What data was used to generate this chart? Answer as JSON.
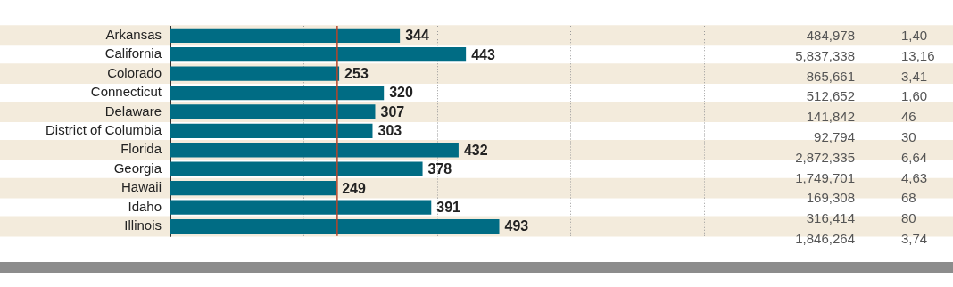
{
  "chart_data": [
    {
      "type": "bar",
      "orientation": "horizontal",
      "categories": [
        "Arkansas",
        "California",
        "Colorado",
        "Connecticut",
        "Delaware",
        "District of Columbia",
        "Florida",
        "Georgia",
        "Hawaii",
        "Idaho",
        "Illinois"
      ],
      "values": [
        344,
        443,
        253,
        320,
        307,
        303,
        432,
        378,
        249,
        391,
        493
      ],
      "color": "#006c84",
      "data_labels": true,
      "xlim": [
        0,
        800
      ],
      "xticks": [
        {
          "value": 200,
          "label": null
        },
        {
          "value": 400,
          "label": null
        },
        {
          "value": 600,
          "label": null
        },
        {
          "value": 800,
          "label": null
        }
      ],
      "grid": "x",
      "tick_labels": "y",
      "legend": false,
      "ref_lines": [
        {
          "axis": "x",
          "value": 250,
          "color": "#b5452a"
        }
      ]
    },
    {
      "type": "other",
      "annotations": [
        "484,978",
        "1,40",
        "5,837,338",
        "13,16",
        "865,661",
        "3,41",
        "512,652",
        "1,60",
        "141,842",
        "46",
        "92,794",
        "30",
        "2,872,335",
        "6,64",
        "1,749,701",
        "4,63",
        "169,308",
        "68",
        "316,414",
        "80",
        "1,846,264",
        "3,74"
      ]
    }
  ]
}
